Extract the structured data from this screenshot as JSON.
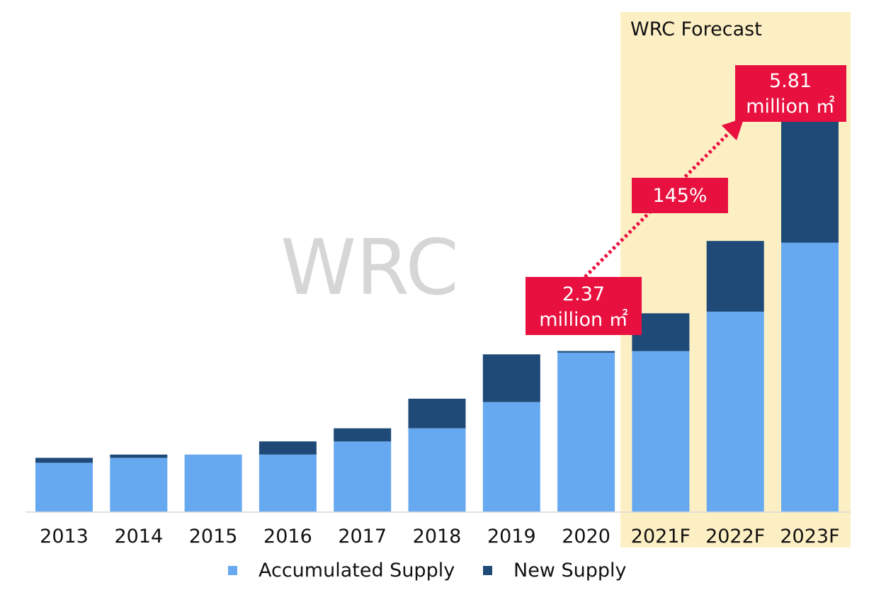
{
  "chart_data": {
    "type": "bar",
    "stacked": true,
    "categories": [
      "2013",
      "2014",
      "2015",
      "2016",
      "2017",
      "2018",
      "2019",
      "2020",
      "2021F",
      "2022F",
      "2023F"
    ],
    "series": [
      {
        "name": "Accumulated Supply",
        "color": "#67a9f0",
        "values": [
          0.3,
          0.33,
          0.35,
          0.35,
          0.43,
          0.51,
          0.67,
          0.97,
          0.98,
          1.22,
          1.64
        ]
      },
      {
        "name": "New Supply",
        "color": "#1f4a77",
        "values": [
          0.03,
          0.02,
          0.0,
          0.08,
          0.08,
          0.18,
          0.29,
          0.01,
          0.23,
          0.43,
          0.78
        ]
      }
    ],
    "grid": false,
    "legend_position": "bottom",
    "forecast_region": {
      "label": "WRC Forecast",
      "categories": [
        "2021F",
        "2022F",
        "2023F"
      ],
      "color": "#fdefc4"
    },
    "watermark": "WRC",
    "annotations": {
      "start": {
        "value": "2.37",
        "unit": "million ㎡",
        "category": "2020"
      },
      "end": {
        "value": "5.81",
        "unit": "million ㎡",
        "category": "2023F"
      },
      "growth": "145%",
      "color": "#e8103f"
    }
  }
}
